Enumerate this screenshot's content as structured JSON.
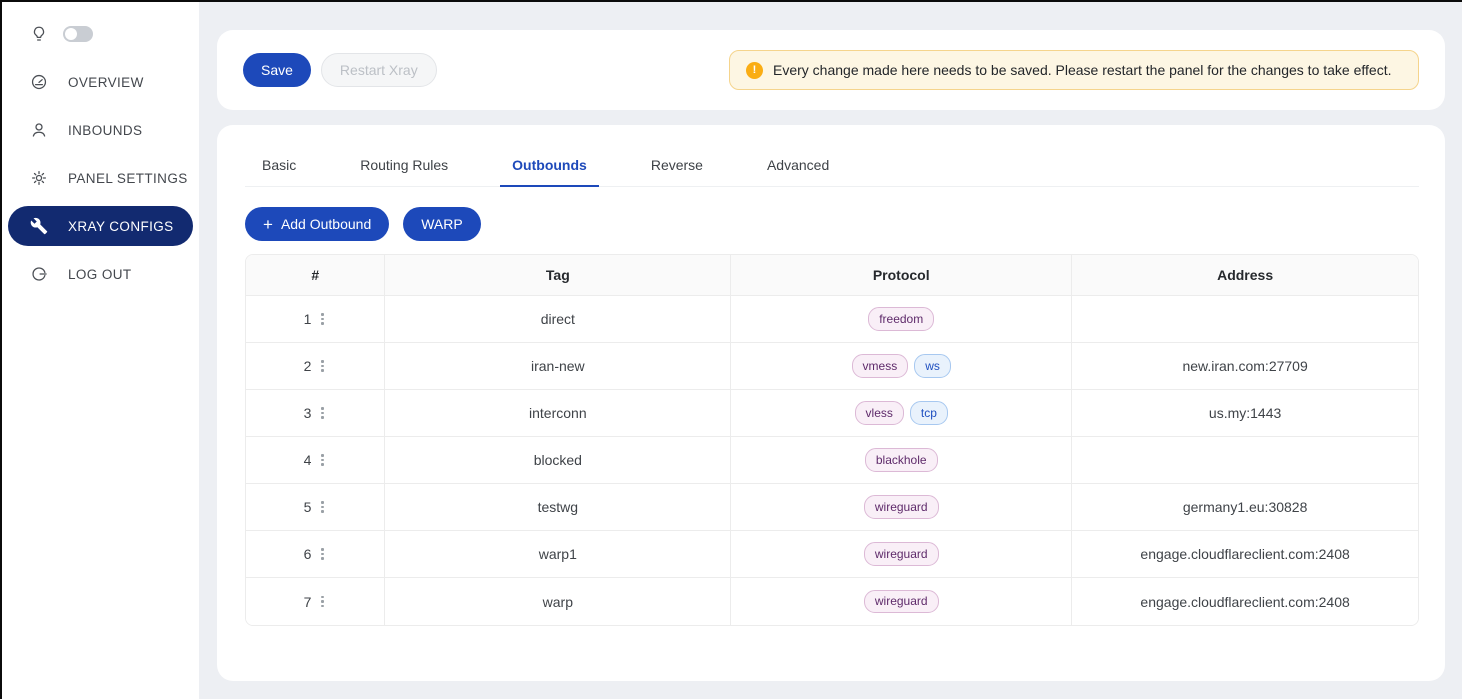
{
  "sidebar": {
    "theme_toggle": {
      "icon": "lightbulb-icon",
      "state": "off"
    },
    "items": [
      {
        "id": "overview",
        "label": "OVERVIEW",
        "icon": "dashboard-icon",
        "active": false
      },
      {
        "id": "inbounds",
        "label": "INBOUNDS",
        "icon": "user-icon",
        "active": false
      },
      {
        "id": "panel-settings",
        "label": "PANEL SETTINGS",
        "icon": "gear-icon",
        "active": false
      },
      {
        "id": "xray-configs",
        "label": "XRAY CONFIGS",
        "icon": "wrench-icon",
        "active": true
      },
      {
        "id": "log-out",
        "label": "LOG OUT",
        "icon": "logout-icon",
        "active": false
      }
    ]
  },
  "toolbar": {
    "save_label": "Save",
    "restart_label": "Restart Xray"
  },
  "alert": {
    "icon": "warning-icon",
    "text": "Every change made here needs to be saved. Please restart the panel for the changes to take effect."
  },
  "tabs": [
    {
      "label": "Basic",
      "active": false
    },
    {
      "label": "Routing Rules",
      "active": false
    },
    {
      "label": "Outbounds",
      "active": true
    },
    {
      "label": "Reverse",
      "active": false
    },
    {
      "label": "Advanced",
      "active": false
    }
  ],
  "actions": {
    "add_outbound_label": "Add Outbound",
    "plus_icon": "plus-icon",
    "warp_label": "WARP"
  },
  "table": {
    "columns": [
      "#",
      "Tag",
      "Protocol",
      "Address"
    ],
    "rows": [
      {
        "num": "1",
        "tag": "direct",
        "badges": [
          {
            "text": "freedom",
            "variant": "protocol"
          }
        ],
        "address": ""
      },
      {
        "num": "2",
        "tag": "iran-new",
        "badges": [
          {
            "text": "vmess",
            "variant": "protocol"
          },
          {
            "text": "ws",
            "variant": "transport"
          }
        ],
        "address": "new.iran.com:27709"
      },
      {
        "num": "3",
        "tag": "interconn",
        "badges": [
          {
            "text": "vless",
            "variant": "protocol"
          },
          {
            "text": "tcp",
            "variant": "transport"
          }
        ],
        "address": "us.my:1443"
      },
      {
        "num": "4",
        "tag": "blocked",
        "badges": [
          {
            "text": "blackhole",
            "variant": "protocol"
          }
        ],
        "address": ""
      },
      {
        "num": "5",
        "tag": "testwg",
        "badges": [
          {
            "text": "wireguard",
            "variant": "protocol"
          }
        ],
        "address": "germany1.eu:30828"
      },
      {
        "num": "6",
        "tag": "warp1",
        "badges": [
          {
            "text": "wireguard",
            "variant": "protocol"
          }
        ],
        "address": "engage.cloudflareclient.com:2408"
      },
      {
        "num": "7",
        "tag": "warp",
        "badges": [
          {
            "text": "wireguard",
            "variant": "protocol"
          }
        ],
        "address": "engage.cloudflareclient.com:2408"
      }
    ]
  },
  "colors": {
    "primary": "#1d49ba",
    "sidebar_active": "#122a70",
    "page_background": "#edeff3",
    "alert_background": "#fdf6e3",
    "alert_border": "#f5d48c",
    "alert_icon": "#faad14",
    "badge_protocol_text": "#5e2a6a",
    "badge_transport_text": "#1f4fc0",
    "table_header_background": "#fafafa"
  }
}
